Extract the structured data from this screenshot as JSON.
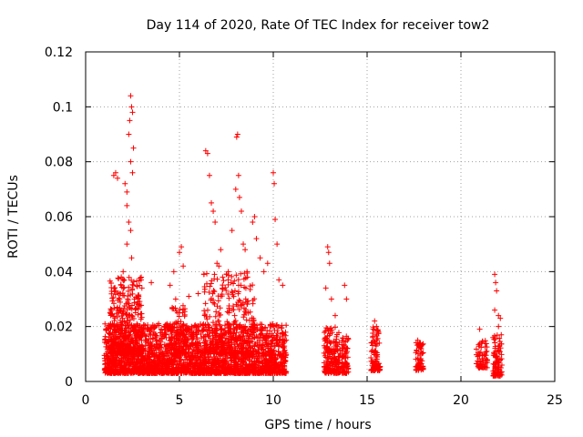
{
  "chart_data": {
    "type": "scatter",
    "title": "Day 114 of 2020, Rate Of TEC Index for receiver tow2",
    "xlabel": "GPS time / hours",
    "ylabel": "ROTI / TECUs",
    "xlim": [
      0,
      25
    ],
    "ylim": [
      0,
      0.12
    ],
    "x_ticks": [
      0,
      5,
      10,
      15,
      20,
      25
    ],
    "y_ticks": [
      0,
      0.02,
      0.04,
      0.06,
      0.08,
      0.1,
      0.12
    ],
    "x_tick_labels": [
      "0",
      "5",
      "10",
      "15",
      "20",
      "25"
    ],
    "y_tick_labels": [
      "0",
      "0.02",
      "0.04",
      "0.06",
      "0.08",
      "0.1",
      "0.12"
    ],
    "grid": true,
    "marker": "plus",
    "color": "#ff0000",
    "series": [
      {
        "name": "tow2",
        "points": [
          [
            1.5,
            0.075
          ],
          [
            1.6,
            0.076
          ],
          [
            1.7,
            0.074
          ],
          [
            2.1,
            0.072
          ],
          [
            2.2,
            0.069
          ],
          [
            2.2,
            0.064
          ],
          [
            2.3,
            0.09
          ],
          [
            2.35,
            0.095
          ],
          [
            2.4,
            0.104
          ],
          [
            2.45,
            0.1
          ],
          [
            2.5,
            0.098
          ],
          [
            2.55,
            0.085
          ],
          [
            2.4,
            0.08
          ],
          [
            2.5,
            0.076
          ],
          [
            2.3,
            0.058
          ],
          [
            2.4,
            0.055
          ],
          [
            2.2,
            0.05
          ],
          [
            2.45,
            0.045
          ],
          [
            2.6,
            0.03
          ],
          [
            1.9,
            0.038
          ],
          [
            2.0,
            0.04
          ],
          [
            3.0,
            0.034
          ],
          [
            3.5,
            0.036
          ],
          [
            4.5,
            0.035
          ],
          [
            4.7,
            0.04
          ],
          [
            5.0,
            0.047
          ],
          [
            5.1,
            0.049
          ],
          [
            5.2,
            0.042
          ],
          [
            4.8,
            0.03
          ],
          [
            5.5,
            0.031
          ],
          [
            6.0,
            0.032
          ],
          [
            6.3,
            0.039
          ],
          [
            6.4,
            0.084
          ],
          [
            6.5,
            0.083
          ],
          [
            6.6,
            0.075
          ],
          [
            6.7,
            0.065
          ],
          [
            6.8,
            0.062
          ],
          [
            6.9,
            0.058
          ],
          [
            7.0,
            0.043
          ],
          [
            7.1,
            0.042
          ],
          [
            7.3,
            0.038
          ],
          [
            7.5,
            0.039
          ],
          [
            7.6,
            0.037
          ],
          [
            7.2,
            0.048
          ],
          [
            7.8,
            0.055
          ],
          [
            8.0,
            0.07
          ],
          [
            8.05,
            0.089
          ],
          [
            8.1,
            0.09
          ],
          [
            8.15,
            0.075
          ],
          [
            8.2,
            0.067
          ],
          [
            8.3,
            0.062
          ],
          [
            8.4,
            0.05
          ],
          [
            8.5,
            0.048
          ],
          [
            8.6,
            0.04
          ],
          [
            8.9,
            0.058
          ],
          [
            9.0,
            0.06
          ],
          [
            9.1,
            0.052
          ],
          [
            9.3,
            0.045
          ],
          [
            9.5,
            0.04
          ],
          [
            9.7,
            0.043
          ],
          [
            10.0,
            0.076
          ],
          [
            10.05,
            0.072
          ],
          [
            10.1,
            0.059
          ],
          [
            10.2,
            0.05
          ],
          [
            10.3,
            0.037
          ],
          [
            10.5,
            0.035
          ],
          [
            12.9,
            0.049
          ],
          [
            12.95,
            0.047
          ],
          [
            13.0,
            0.043
          ],
          [
            12.8,
            0.034
          ],
          [
            13.1,
            0.03
          ],
          [
            13.3,
            0.024
          ],
          [
            13.8,
            0.035
          ],
          [
            13.9,
            0.03
          ],
          [
            15.4,
            0.022
          ],
          [
            15.5,
            0.02
          ],
          [
            15.6,
            0.018
          ],
          [
            15.3,
            0.016
          ],
          [
            17.7,
            0.015
          ],
          [
            17.8,
            0.014
          ],
          [
            17.9,
            0.013
          ],
          [
            21.0,
            0.019
          ],
          [
            21.8,
            0.039
          ],
          [
            21.85,
            0.036
          ],
          [
            21.9,
            0.033
          ],
          [
            21.8,
            0.026
          ],
          [
            22.0,
            0.024
          ],
          [
            22.1,
            0.023
          ],
          [
            22.0,
            0.02
          ]
        ],
        "dense_segments": [
          {
            "x_range": [
              1.0,
              10.7
            ],
            "y_range": [
              0.003,
              0.021
            ],
            "count": 2600
          },
          {
            "x_range": [
              1.3,
              3.0
            ],
            "y_range": [
              0.01,
              0.038
            ],
            "count": 350
          },
          {
            "x_range": [
              6.3,
              9.0
            ],
            "y_range": [
              0.01,
              0.04
            ],
            "count": 300
          },
          {
            "x_range": [
              4.6,
              5.3
            ],
            "y_range": [
              0.01,
              0.03
            ],
            "count": 80
          },
          {
            "x_range": [
              12.7,
              14.0
            ],
            "y_range": [
              0.003,
              0.02
            ],
            "count": 260
          },
          {
            "x_range": [
              15.2,
              15.7
            ],
            "y_range": [
              0.004,
              0.02
            ],
            "count": 90
          },
          {
            "x_range": [
              17.6,
              18.0
            ],
            "y_range": [
              0.004,
              0.015
            ],
            "count": 60
          },
          {
            "x_range": [
              20.8,
              21.4
            ],
            "y_range": [
              0.005,
              0.015
            ],
            "count": 70
          },
          {
            "x_range": [
              21.7,
              22.2
            ],
            "y_range": [
              0.002,
              0.018
            ],
            "count": 90
          }
        ]
      }
    ]
  }
}
